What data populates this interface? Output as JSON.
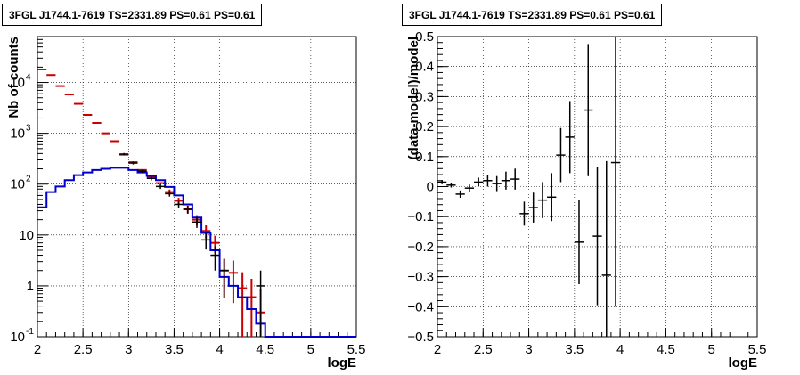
{
  "chart_data": [
    {
      "type": "step_histogram_with_errorbars",
      "title": "3FGL J1744.1-7619 TS=2331.89 PS=0.61 PS=0.61",
      "xlabel": "logE",
      "ylabel": "Nb of counts",
      "xlim": [
        2,
        5.5
      ],
      "ylim": [
        0.1,
        80000
      ],
      "y_log_scale": true,
      "grid": true,
      "x_ticks": [
        "2",
        "2.5",
        "3",
        "3.5",
        "4",
        "4.5",
        "5",
        "5.5"
      ],
      "y_ticks": [
        {
          "v": 0.1,
          "label": "10",
          "exp": "-1"
        },
        {
          "v": 1,
          "label": "1",
          "exp": ""
        },
        {
          "v": 10,
          "label": "10",
          "exp": ""
        },
        {
          "v": 100,
          "label": "10",
          "exp": "2"
        },
        {
          "v": 1000,
          "label": "10",
          "exp": "3"
        },
        {
          "v": 10000,
          "label": "10",
          "exp": "4"
        }
      ],
      "bin_edges": [
        2,
        2.1,
        2.2,
        2.3,
        2.4,
        2.5,
        2.6,
        2.7,
        2.8,
        2.9,
        3,
        3.1,
        3.2,
        3.3,
        3.4,
        3.5,
        3.6,
        3.7,
        3.8,
        3.9,
        4,
        4.1,
        4.2,
        4.3,
        4.4,
        4.5,
        4.6,
        4.7,
        4.8,
        4.9,
        5,
        5.1,
        5.2,
        5.3,
        5.4,
        5.5
      ],
      "series": [
        {
          "role": "total model",
          "color": "#cc0000",
          "style": "markers_with_errorbars",
          "x": [
            2.05,
            2.15,
            2.25,
            2.35,
            2.45,
            2.55,
            2.65,
            2.75,
            2.85,
            2.95,
            3.05,
            3.15,
            3.25,
            3.35,
            3.45,
            3.55,
            3.65,
            3.75,
            3.85,
            3.95,
            4.05,
            4.15,
            4.25,
            4.35,
            4.45
          ],
          "y": [
            18000,
            14000,
            8500,
            5800,
            3800,
            2300,
            1600,
            1000,
            700,
            380,
            270,
            190,
            140,
            105,
            70,
            47,
            32,
            20,
            12,
            7,
            2,
            1.8,
            0.9,
            0.6,
            0.3
          ]
        },
        {
          "role": "source model",
          "color": "#0000cc",
          "style": "step",
          "values": [
            35,
            70,
            90,
            120,
            150,
            170,
            190,
            200,
            210,
            210,
            190,
            170,
            145,
            120,
            88,
            60,
            40,
            22,
            11,
            5,
            1.5,
            1,
            0.6,
            0.35,
            0.18,
            0.1,
            0.1,
            0.1,
            0.1,
            0.1,
            0.1,
            0.1,
            0.1,
            0.1,
            0.1
          ]
        },
        {
          "role": "data",
          "color": "#000000",
          "style": "markers_with_errorbars",
          "x": [
            2.95,
            3.05,
            3.15,
            3.25,
            3.35,
            3.45,
            3.55,
            3.65,
            3.75,
            3.85,
            3.95,
            4.05,
            4.45
          ],
          "y": [
            390,
            260,
            180,
            130,
            90,
            65,
            40,
            32,
            18,
            8,
            4,
            2,
            1
          ]
        }
      ]
    },
    {
      "type": "scatter_with_errorbars",
      "title": "3FGL J1744.1-7619 TS=2331.89 PS=0.61 PS=0.61",
      "xlabel": "logE",
      "ylabel": "(data-model)/model",
      "xlim": [
        2,
        5.5
      ],
      "ylim": [
        -0.5,
        0.5
      ],
      "grid": true,
      "x_ticks": [
        "2",
        "2.5",
        "3",
        "3.5",
        "4",
        "4.5",
        "5",
        "5.5"
      ],
      "y_ticks": [
        "−0.5",
        "−0.4",
        "−0.3",
        "−0.2",
        "−0.1",
        "0",
        "0.1",
        "0.2",
        "0.3",
        "0.4",
        "0.5"
      ],
      "series": [
        {
          "color": "#000000",
          "x": [
            2.05,
            2.15,
            2.25,
            2.35,
            2.45,
            2.55,
            2.65,
            2.75,
            2.85,
            2.95,
            3.05,
            3.15,
            3.25,
            3.35,
            3.45,
            3.55,
            3.65,
            3.75,
            3.85,
            3.95
          ],
          "y": [
            0.015,
            0.005,
            -0.025,
            -0.005,
            0.015,
            0.02,
            0.01,
            0.02,
            0.025,
            -0.09,
            -0.07,
            -0.045,
            -0.035,
            0.105,
            0.165,
            -0.185,
            0.255,
            -0.165,
            -0.295,
            0.08
          ],
          "err": [
            0.007,
            0.008,
            0.012,
            0.012,
            0.015,
            0.02,
            0.025,
            0.03,
            0.035,
            0.04,
            0.05,
            0.06,
            0.08,
            0.09,
            0.12,
            0.14,
            0.22,
            0.23,
            0.38,
            0.48
          ]
        }
      ]
    }
  ]
}
